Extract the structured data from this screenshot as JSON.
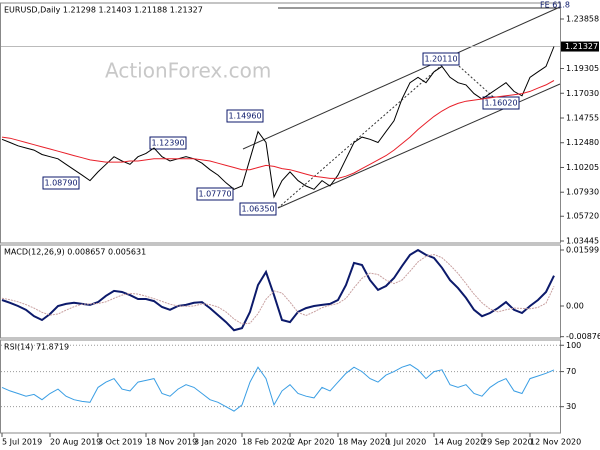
{
  "chart_data": [
    {
      "type": "line",
      "title": "EURUSD,Daily 1.21298 1.21403 1.21188 1.21327",
      "watermark": "ActionForex.com",
      "ylim": [
        1.0326,
        1.2533
      ],
      "yticks": [
        1.23858,
        1.19305,
        {
          "value": 1.1703,
          "label": "1.17030"
        },
        1.14755,
        {
          "value": 1.1248,
          "label": "1.12480"
        },
        1.10205,
        {
          "value": 1.0793,
          "label": "1.07930"
        },
        {
          "value": 1.0572,
          "label": "1.05720"
        },
        1.03445
      ],
      "last_price": 1.21327,
      "annotations": [
        "FE 61.8",
        "1.20110",
        "1.16020",
        "1.14960",
        "1.12390",
        "1.08790",
        "1.07770",
        "1.06350"
      ],
      "grid": false,
      "series": [
        {
          "color": "#000000",
          "values": [
            1.128,
            1.125,
            1.122,
            1.12,
            1.118,
            1.114,
            1.112,
            1.11,
            1.105,
            1.1,
            1.095,
            1.09,
            1.098,
            1.105,
            1.112,
            1.108,
            1.105,
            1.112,
            1.115,
            1.12,
            1.112,
            1.108,
            1.11,
            1.112,
            1.11,
            1.106,
            1.1,
            1.095,
            1.088,
            1.082,
            1.085,
            1.11,
            1.135,
            1.125,
            1.075,
            1.09,
            1.098,
            1.09,
            1.085,
            1.082,
            1.09,
            1.085,
            1.095,
            1.11,
            1.125,
            1.13,
            1.128,
            1.125,
            1.135,
            1.145,
            1.165,
            1.18,
            1.185,
            1.18,
            1.19,
            1.195,
            1.185,
            1.18,
            1.178,
            1.17,
            1.165,
            1.17,
            1.175,
            1.18,
            1.172,
            1.168,
            1.185,
            1.19,
            1.195,
            1.2133
          ]
        },
        {
          "color": "#e8202a",
          "values": [
            1.13,
            1.129,
            1.127,
            1.125,
            1.123,
            1.121,
            1.119,
            1.117,
            1.115,
            1.113,
            1.111,
            1.109,
            1.108,
            1.107,
            1.107,
            1.107,
            1.108,
            1.108,
            1.109,
            1.11,
            1.11,
            1.11,
            1.11,
            1.11,
            1.11,
            1.109,
            1.108,
            1.106,
            1.104,
            1.102,
            1.1,
            1.1,
            1.102,
            1.104,
            1.103,
            1.101,
            1.1,
            1.098,
            1.096,
            1.094,
            1.093,
            1.092,
            1.092,
            1.094,
            1.097,
            1.101,
            1.105,
            1.109,
            1.113,
            1.118,
            1.124,
            1.13,
            1.137,
            1.143,
            1.149,
            1.154,
            1.158,
            1.161,
            1.163,
            1.164,
            1.165,
            1.166,
            1.167,
            1.168,
            1.169,
            1.17,
            1.172,
            1.175,
            1.178,
            1.182
          ]
        }
      ]
    },
    {
      "type": "line",
      "title": "MACD(12,26,9) 0.008657 0.005631",
      "ylim": [
        -0.00914,
        0.01742
      ],
      "yticks": [
        0.015991,
        {
          "value": 0,
          "label": "0.00"
        },
        -0.00876
      ],
      "grid": false,
      "series": [
        {
          "color": "#0c1a6b",
          "values": [
            0.0017,
            0.0009,
            0,
            -0.0011,
            -0.0029,
            -0.004,
            -0.0023,
            0,
            0.0006,
            0.0009,
            0.0006,
            0.0003,
            0.0011,
            0.0029,
            0.0043,
            0.004,
            0.0031,
            0.002,
            0.002,
            0.0014,
            -0.0003,
            -0.0011,
            0,
            0.0003,
            0.0009,
            0.0011,
            -0.0006,
            -0.0026,
            -0.0046,
            -0.0069,
            -0.0063,
            -0.0017,
            0.006,
            0.0097,
            0.0031,
            -0.004,
            -0.0046,
            -0.0017,
            -0.0006,
            0,
            0.0003,
            0.0006,
            0.0017,
            0.006,
            0.0123,
            0.0117,
            0.0074,
            0.0046,
            0.0057,
            0.008,
            0.0114,
            0.0146,
            0.016,
            0.0146,
            0.0137,
            0.0109,
            0.0074,
            0.0051,
            0.0023,
            -0.0011,
            -0.0029,
            -0.002,
            -0.0006,
            0.0011,
            -0.0011,
            -0.002,
            0,
            0.0017,
            0.004,
            0.008657
          ]
        },
        {
          "color": "#c8a0a0",
          "values": [
            0.0022,
            0.0018,
            0.0012,
            0.0004,
            -0.0006,
            -0.0018,
            -0.0026,
            -0.0023,
            -0.0012,
            -0.0002,
            0.0005,
            0.0006,
            0.0007,
            0.0012,
            0.0022,
            0.0031,
            0.0036,
            0.0034,
            0.0028,
            0.0021,
            0.0013,
            0.0005,
            0,
            -0.0001,
            0,
            0.0006,
            0.0004,
            -0.0003,
            -0.0017,
            -0.0037,
            -0.0051,
            -0.0049,
            -0.0022,
            0.0019,
            0.0043,
            0.0037,
            0.0011,
            -0.0018,
            -0.0027,
            -0.0017,
            -0.0005,
            0.0002,
            0.0007,
            0.0022,
            0.0052,
            0.0079,
            0.0094,
            0.009,
            0.0074,
            0.0064,
            0.0074,
            0.0099,
            0.0126,
            0.0142,
            0.0147,
            0.0138,
            0.0117,
            0.0093,
            0.0064,
            0.0034,
            0.0009,
            -0.0009,
            -0.0017,
            -0.0011,
            -0.0006,
            -0.0007,
            -0.0008,
            -0.0004,
            0.0008,
            0.005631
          ]
        }
      ]
    },
    {
      "type": "line",
      "title": "RSI(14) 71.8719",
      "ylim": [
        0,
        106
      ],
      "yticks": [
        100,
        70,
        30
      ],
      "grid": true,
      "categories": [
        "5 Jul 2019",
        null,
        null,
        null,
        null,
        null,
        "20 Aug 2019",
        null,
        null,
        null,
        null,
        null,
        "3 Oct 2019",
        null,
        null,
        null,
        null,
        null,
        "18 Nov 2019",
        null,
        null,
        null,
        null,
        null,
        "3 Jan 2020",
        null,
        null,
        null,
        null,
        null,
        "18 Feb 2020",
        null,
        null,
        null,
        null,
        null,
        "2 Apr 2020",
        null,
        null,
        null,
        null,
        null,
        "18 May 2020",
        null,
        null,
        null,
        null,
        null,
        "1 Jul 2020",
        null,
        null,
        null,
        null,
        null,
        "14 Aug 2020",
        null,
        null,
        null,
        null,
        null,
        "29 Sep 2020",
        null,
        null,
        null,
        null,
        null,
        "12 Nov 2020",
        null,
        null,
        null
      ],
      "series": [
        {
          "color": "#3a9ee4",
          "values": [
            52,
            48,
            45,
            42,
            44,
            38,
            45,
            50,
            42,
            38,
            36,
            35,
            52,
            58,
            62,
            50,
            48,
            58,
            60,
            62,
            45,
            42,
            50,
            55,
            52,
            45,
            38,
            35,
            30,
            25,
            32,
            58,
            75,
            62,
            32,
            48,
            55,
            45,
            42,
            40,
            52,
            48,
            58,
            68,
            75,
            70,
            62,
            58,
            66,
            70,
            75,
            78,
            72,
            62,
            70,
            72,
            55,
            52,
            55,
            45,
            42,
            52,
            58,
            62,
            48,
            45,
            62,
            65,
            68,
            71.8719
          ]
        }
      ]
    }
  ]
}
